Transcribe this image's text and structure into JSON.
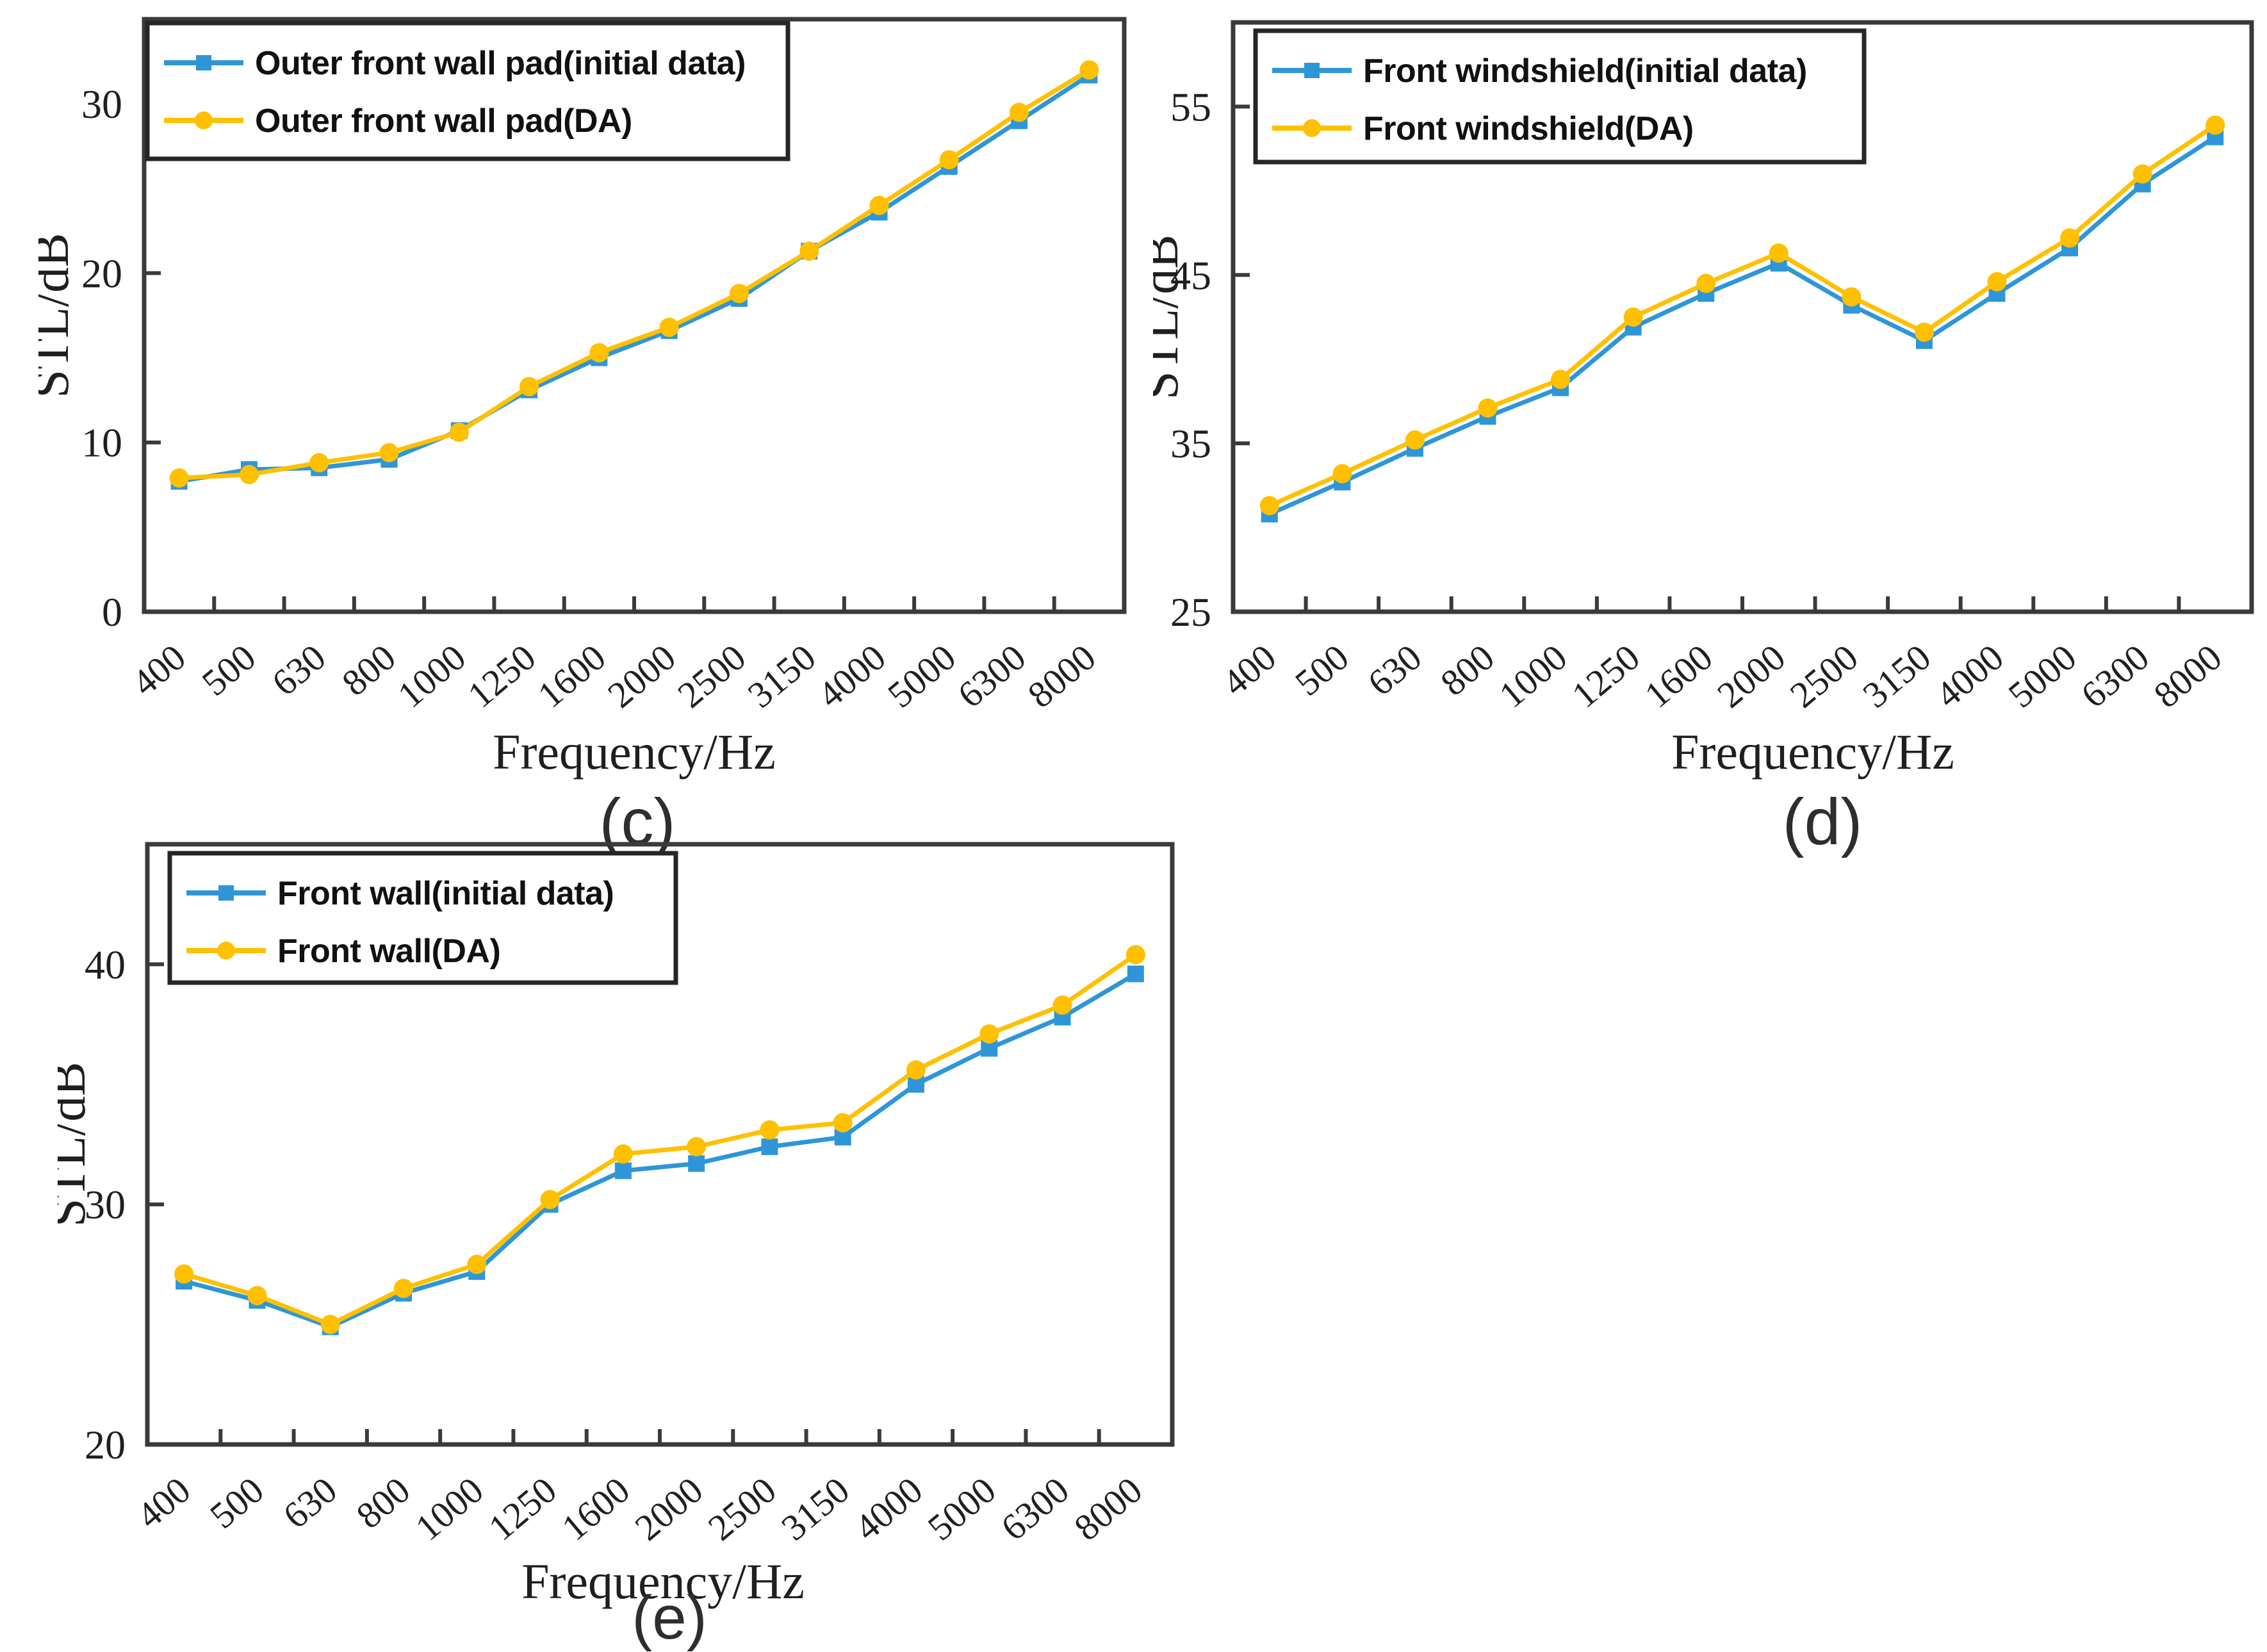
{
  "page": {
    "background": "#FFFFFF",
    "description_labels": {
      "x_axis_title": "Frequency/Hz",
      "y_axis_title": "STL/dB"
    }
  },
  "colors": {
    "initial_series": "#2E96D8",
    "da_series": "#FFC000",
    "axis": "#3A3A3A",
    "tick_text": "#1F1F1F",
    "panel_label_text": "#2E2E2E",
    "legend_border": "#262626",
    "legend_bg": "#FFFFFF",
    "legend_text": "#111111"
  },
  "chart_data": [
    {
      "type": "line",
      "panel_label": "(c)",
      "xlabel": "Frequency/Hz",
      "ylabel": "STL/dB",
      "legend_position": "top-left",
      "grid": false,
      "categories": [
        "400",
        "500",
        "630",
        "800",
        "1000",
        "1250",
        "1600",
        "2000",
        "2500",
        "3150",
        "4000",
        "5000",
        "6300",
        "8000"
      ],
      "ylim": [
        0,
        35
      ],
      "yticks": [
        0,
        10,
        20,
        30
      ],
      "series": [
        {
          "name": "Outer front wall pad(initial data)",
          "marker": "square",
          "color": "#2E96D8",
          "values": [
            7.7,
            8.4,
            8.5,
            9.0,
            10.7,
            13.1,
            15.0,
            16.6,
            18.5,
            21.3,
            23.6,
            26.3,
            29.0,
            31.7
          ]
        },
        {
          "name": "Outer front wall pad(DA)",
          "marker": "circle",
          "color": "#FFC000",
          "values": [
            7.9,
            8.1,
            8.8,
            9.4,
            10.6,
            13.3,
            15.3,
            16.8,
            18.8,
            21.3,
            24.0,
            26.7,
            29.5,
            32.0
          ]
        }
      ]
    },
    {
      "type": "line",
      "panel_label": "(d)",
      "xlabel": "Frequency/Hz",
      "ylabel": "STL/dB",
      "legend_position": "top-left",
      "grid": false,
      "categories": [
        "400",
        "500",
        "630",
        "800",
        "1000",
        "1250",
        "1600",
        "2000",
        "2500",
        "3150",
        "4000",
        "5000",
        "6300",
        "8000"
      ],
      "ylim": [
        25,
        60
      ],
      "yticks": [
        25,
        35,
        45,
        55
      ],
      "series": [
        {
          "name": "Front windshield(initial data)",
          "marker": "square",
          "color": "#2E96D8",
          "values": [
            30.8,
            32.7,
            34.7,
            36.6,
            38.3,
            41.9,
            43.9,
            45.7,
            43.2,
            41.1,
            43.9,
            46.6,
            50.4,
            53.2
          ]
        },
        {
          "name": "Front windshield(DA)",
          "marker": "circle",
          "color": "#FFC000",
          "values": [
            31.3,
            33.2,
            35.2,
            37.1,
            38.8,
            42.5,
            44.5,
            46.3,
            43.7,
            41.6,
            44.6,
            47.2,
            51.0,
            53.9
          ]
        }
      ]
    },
    {
      "type": "line",
      "panel_label": "(e)",
      "xlabel": "Frequency/Hz",
      "ylabel": "STL/dB",
      "legend_position": "top-left",
      "grid": false,
      "categories": [
        "400",
        "500",
        "630",
        "800",
        "1000",
        "1250",
        "1600",
        "2000",
        "2500",
        "3150",
        "4000",
        "5000",
        "6300",
        "8000"
      ],
      "ylim": [
        20,
        45
      ],
      "yticks": [
        20,
        30,
        40
      ],
      "series": [
        {
          "name": "Front wall(initial data)",
          "marker": "square",
          "color": "#2E96D8",
          "values": [
            26.8,
            26.0,
            24.9,
            26.3,
            27.2,
            30.0,
            31.4,
            31.7,
            32.4,
            32.8,
            35.0,
            36.5,
            37.8,
            39.6
          ]
        },
        {
          "name": "Front wall(DA)",
          "marker": "circle",
          "color": "#FFC000",
          "values": [
            27.1,
            26.2,
            25.0,
            26.5,
            27.5,
            30.2,
            32.1,
            32.4,
            33.1,
            33.4,
            35.6,
            37.1,
            38.3,
            40.4
          ]
        }
      ]
    }
  ]
}
